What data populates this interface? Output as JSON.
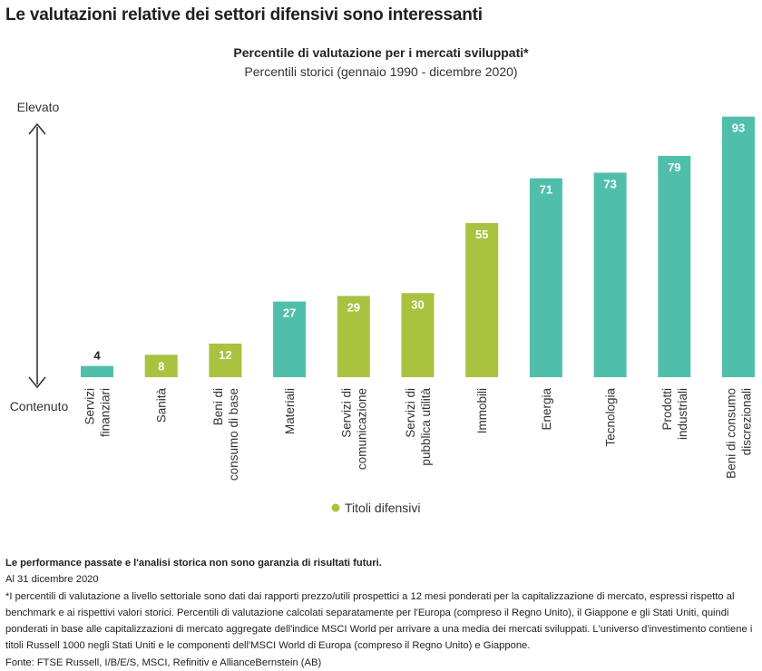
{
  "header": {
    "title": "Le valutazioni relative dei settori difensivi sono interessanti"
  },
  "chart_data": {
    "type": "bar",
    "title": "Percentile di valutazione per i mercati sviluppati*",
    "subtitle": "Percentili storici (gennaio 1990 - dicembre 2020)",
    "ylim": [
      0,
      100
    ],
    "y_axis_top_label": "Elevato",
    "y_axis_bottom_label": "Contenuto",
    "categories": [
      [
        "Servizi",
        "finanziari"
      ],
      [
        "Sanità"
      ],
      [
        "Beni di",
        "consumo di base"
      ],
      [
        "Materiali"
      ],
      [
        "Servizi di",
        "comunicazione"
      ],
      [
        "Servizi di",
        "pubblica utilità"
      ],
      [
        "Immobili"
      ],
      [
        "Energia"
      ],
      [
        "Tecnologia"
      ],
      [
        "Prodotti",
        "industriali"
      ],
      [
        "Beni di consumo",
        "discrezionali"
      ]
    ],
    "values": [
      4,
      8,
      12,
      27,
      29,
      30,
      55,
      71,
      73,
      79,
      93
    ],
    "defensive": [
      false,
      true,
      true,
      false,
      true,
      true,
      true,
      false,
      false,
      false,
      false
    ],
    "colors": {
      "defensive": "#a9c23f",
      "other": "#4fbfab"
    },
    "legend": {
      "label": "Titoli difensivi",
      "color": "#a9c23f",
      "placement": "bottom-center"
    }
  },
  "footer": {
    "disclaimer": "Le performance passate e l'analisi storica non sono garanzia di risultati futuri.",
    "date": "Al 31 dicembre 2020",
    "note": "*I percentili di valutazione a livello settoriale sono dati dai rapporti prezzo/utili prospettici a 12 mesi ponderati per la capitalizzazione di mercato, espressi rispetto al benchmark e ai rispettivi valori storici. Percentili di valutazione calcolati separatamente per l'Europa (compreso il Regno Unito), il Giappone e gli Stati Uniti, quindi ponderati in base alle capitalizzazioni di mercato aggregate dell'indice MSCI World per arrivare a una media dei mercati sviluppati. L'universo d'investimento contiene i titoli Russell 1000 negli Stati Uniti e le componenti dell'MSCI World di Europa (compreso il Regno Unito) e Giappone.",
    "source": "Fonte: FTSE Russell, I/B/E/S, MSCI, Refinitiv e AllianceBernstein (AB)"
  }
}
